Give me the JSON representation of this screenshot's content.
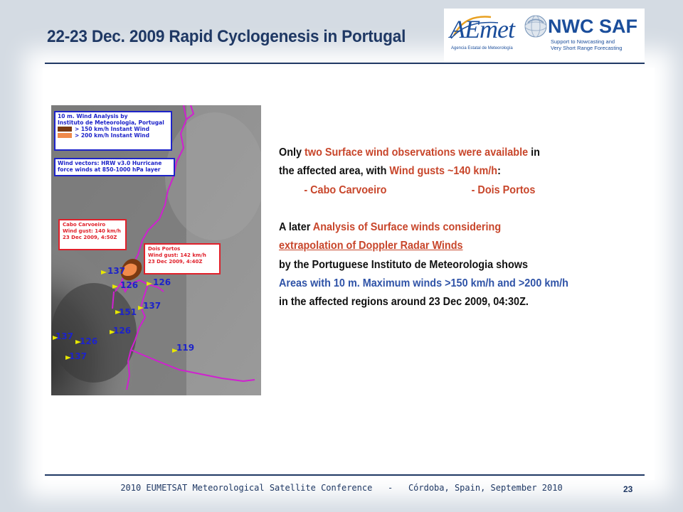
{
  "slide": {
    "title": "22-23 Dec. 2009 Rapid Cyclogenesis in Portugal",
    "page_number": "23",
    "footer": {
      "left": "2010 EUMETSAT Meteorological Satellite Conference",
      "separator": "-",
      "right": "Córdoba, Spain, September 2010"
    }
  },
  "logos": {
    "aemet": {
      "name": "AEmet",
      "subtitle": "Agencia Estatal de Meteorología",
      "color": "#1b4e9b"
    },
    "nwcsaf": {
      "name": "NWC SAF",
      "subtitle_line1": "Support to Nowcasting and",
      "subtitle_line2": "Very Short Range Forecasting",
      "color": "#1b4e9b"
    }
  },
  "map": {
    "legend": {
      "line1": "10 m. Wind Analysis by",
      "line2": "Instituto de Meteorologia, Portugal",
      "entries": [
        {
          "label": "> 150 km/h Instant Wind",
          "color": "#7a3a12"
        },
        {
          "label": "> 200 km/h Instant Wind",
          "color": "#f08a4b"
        }
      ]
    },
    "vectors_note": {
      "line1": "Wind vectors: HRW v3.0 Hurricane",
      "line2": "force winds at 850-1000 hPa layer"
    },
    "observations": [
      {
        "station": "Cabo Carvoeiro",
        "gust": "Wind gust: 140 km/h",
        "time": "23 Dec 2009, 4:50Z"
      },
      {
        "station": "Dois Portos",
        "gust": "Wind gust: 142 km/h",
        "time": "23 Dec 2009, 4:40Z"
      }
    ],
    "wind_values": [
      "137",
      "126",
      "126",
      "151",
      "137",
      "126",
      "137",
      "126",
      "137",
      "119"
    ],
    "colors": {
      "border": "#d020d0",
      "labels": "#1d23c9",
      "arrows": "#e8e800"
    }
  },
  "text": {
    "p1_l1_a": "Only ",
    "p1_l1_b": "two Surface wind observations were available",
    "p1_l1_c": " in",
    "p1_l2_a": "the affected area, with ",
    "p1_l2_b": "Wind gusts ~140 km/h",
    "p1_l2_c": ":",
    "station1": "- Cabo Carvoeiro",
    "station2": "- Dois Portos",
    "p2_l1_a": "A later ",
    "p2_l1_b": "Analysis of Surface winds considering",
    "p2_l2": "extrapolation of Doppler Radar Winds",
    "p2_l3": "by the Portuguese Instituto de Meteorologia shows",
    "p2_l4": "Areas with 10 m. Maximum winds >150 km/h and >200 km/h",
    "p2_l5": "in the affected regions around 23 Dec 2009, 04:30Z."
  },
  "colors": {
    "title": "#1f3864",
    "highlight_red": "#c8462b",
    "highlight_blue": "#2f53a7"
  }
}
